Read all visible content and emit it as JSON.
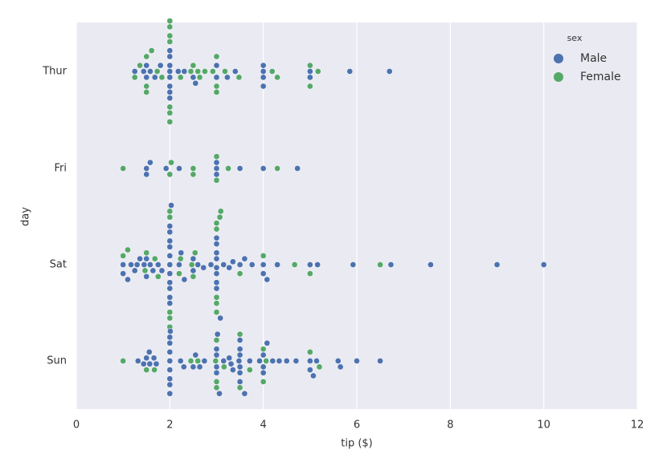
{
  "chart_data": {
    "type": "swarm",
    "x_label": "tip ($)",
    "y_label": "day",
    "categories": [
      "Thur",
      "Fri",
      "Sat",
      "Sun"
    ],
    "xlim": [
      0,
      12
    ],
    "xticks": [
      0,
      2,
      4,
      6,
      8,
      10,
      12
    ],
    "grid": true,
    "legend_title": "sex",
    "legend_position": "upper-right",
    "series": [
      {
        "name": "Male",
        "color": "#4c72b0",
        "values": [
          [
            1.25,
            1.44,
            1.5,
            1.5,
            1.58,
            1.68,
            1.8,
            2,
            2,
            2,
            2,
            2,
            2,
            2,
            2,
            2.18,
            2.31,
            2.5,
            2.55,
            3,
            3,
            3.23,
            3.4,
            4,
            4,
            4,
            4,
            5,
            5,
            5.85,
            6.7
          ],
          [
            1.5,
            1.5,
            1.58,
            1.92,
            2.2,
            3,
            3,
            3,
            3.5,
            4,
            4.73
          ],
          [
            1,
            1,
            1.1,
            1.17,
            1.25,
            1.3,
            1.36,
            1.45,
            1.5,
            1.5,
            1.58,
            1.64,
            1.75,
            1.83,
            2,
            2,
            2,
            2,
            2,
            2,
            2,
            2,
            2,
            2,
            2,
            2.03,
            2.2,
            2.24,
            2.31,
            2.5,
            2.5,
            2.6,
            2.72,
            2.88,
            3,
            3,
            3,
            3,
            3,
            3,
            3,
            3,
            3.08,
            3.15,
            3.27,
            3.35,
            3.5,
            3.6,
            3.76,
            4,
            4,
            4.08,
            4.3,
            5,
            5.16,
            5.92,
            6.73,
            7.58,
            9,
            10
          ],
          [
            1.32,
            1.44,
            1.5,
            1.56,
            1.57,
            1.66,
            1.71,
            2,
            2,
            2,
            2,
            2,
            2,
            2,
            2,
            2.01,
            2.23,
            2.5,
            2.55,
            2.64,
            3,
            3,
            3,
            3,
            3.06,
            3.15,
            3.27,
            3.35,
            3.5,
            3.5,
            3.5,
            3.5,
            3.5,
            3.5,
            3.6,
            3.71,
            3.92,
            4,
            4,
            4,
            4.08,
            4.34,
            4.5,
            4.7,
            5,
            5,
            5.07,
            5.14,
            5.6,
            5.65,
            6,
            6.5,
            3.02,
            3.48,
            2.74,
            4.2,
            2.3,
            3.31
          ]
        ]
      },
      {
        "name": "Female",
        "color": "#55a868",
        "values": [
          [
            1.25,
            1.36,
            1.5,
            1.5,
            1.61,
            1.73,
            1.83,
            2,
            2,
            2,
            2,
            2,
            2,
            2,
            2.23,
            2.5,
            2.6,
            2.75,
            2.92,
            3,
            3,
            3,
            3.48,
            4.19,
            4.3,
            5,
            5,
            5.17,
            1.5,
            2.64,
            3.18,
            2.45
          ],
          [
            1,
            2,
            2.03,
            2.5,
            2.5,
            3,
            3,
            3.25,
            4.3
          ],
          [
            1,
            1.1,
            1.5,
            1.47,
            1.68,
            2,
            2,
            2,
            2,
            2,
            2.2,
            2.23,
            2.47,
            2.5,
            2.54,
            3,
            3,
            3,
            3,
            3,
            3.07,
            3.09,
            3.5,
            4,
            4.67,
            5,
            6.5,
            1.75
          ],
          [
            1,
            1.5,
            1.67,
            2.6,
            3,
            3,
            3,
            3.16,
            3.5,
            3.5,
            3.71,
            4,
            4.06,
            4,
            5.2,
            5,
            2.98,
            2.45
          ]
        ]
      }
    ]
  }
}
